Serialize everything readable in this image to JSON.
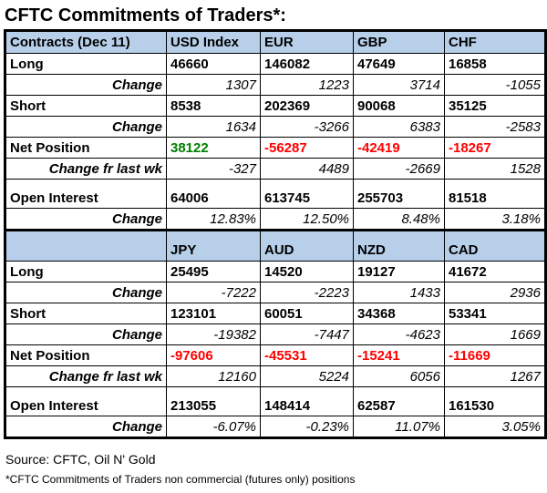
{
  "title": "CFTC Commitments of Traders*:",
  "colors": {
    "header_bg": "#b8cfe9",
    "label_bg": "#fdfbea",
    "positive": "#008000",
    "negative": "#ff0000",
    "border": "#000000"
  },
  "table": {
    "sections": [
      {
        "header": [
          "Contracts (Dec 11)",
          "USD Index",
          "EUR",
          "GBP",
          "CHF"
        ],
        "rows": [
          {
            "label": "Long",
            "style": "value",
            "tall": false,
            "values": [
              "46660",
              "146082",
              "47649",
              "16858"
            ]
          },
          {
            "label": "Change",
            "style": "change",
            "tall": false,
            "values": [
              "1307",
              "1223",
              "3714",
              "-1055"
            ]
          },
          {
            "label": "Short",
            "style": "value",
            "tall": false,
            "values": [
              "8538",
              "202369",
              "90068",
              "35125"
            ]
          },
          {
            "label": "Change",
            "style": "change",
            "tall": false,
            "values": [
              "1634",
              "-3266",
              "6383",
              "-2583"
            ]
          },
          {
            "label": "Net Position",
            "style": "net",
            "tall": false,
            "values": [
              "38122",
              "-56287",
              "-42419",
              "-18267"
            ]
          },
          {
            "label": "Change fr last wk",
            "style": "change",
            "tall": false,
            "values": [
              "-327",
              "4489",
              "-2669",
              "1528"
            ]
          },
          {
            "label": "Open Interest",
            "style": "value",
            "tall": true,
            "values": [
              "64006",
              "613745",
              "255703",
              "81518"
            ]
          },
          {
            "label": "Change",
            "style": "change",
            "tall": false,
            "values": [
              "12.83%",
              "12.50%",
              "8.48%",
              "3.18%"
            ]
          }
        ]
      },
      {
        "header": [
          "",
          "JPY",
          "AUD",
          "NZD",
          "CAD"
        ],
        "rows": [
          {
            "label": "Long",
            "style": "value",
            "tall": false,
            "values": [
              "25495",
              "14520",
              "19127",
              "41672"
            ]
          },
          {
            "label": "Change",
            "style": "change",
            "tall": false,
            "values": [
              "-7222",
              "-2223",
              "1433",
              "2936"
            ]
          },
          {
            "label": "Short",
            "style": "value",
            "tall": false,
            "values": [
              "123101",
              "60051",
              "34368",
              "53341"
            ]
          },
          {
            "label": "Change",
            "style": "change",
            "tall": false,
            "values": [
              "-19382",
              "-7447",
              "-4623",
              "1669"
            ]
          },
          {
            "label": "Net Position",
            "style": "net",
            "tall": false,
            "values": [
              "-97606",
              "-45531",
              "-15241",
              "-11669"
            ]
          },
          {
            "label": "Change fr last wk",
            "style": "change",
            "tall": false,
            "values": [
              "12160",
              "5224",
              "6056",
              "1267"
            ]
          },
          {
            "label": "Open Interest",
            "style": "value",
            "tall": true,
            "values": [
              "213055",
              "148414",
              "62587",
              "161530"
            ]
          },
          {
            "label": "Change",
            "style": "change",
            "tall": false,
            "values": [
              "-6.07%",
              "-0.23%",
              "11.07%",
              "3.05%"
            ]
          }
        ]
      }
    ]
  },
  "footer": {
    "source": "Source: CFTC, Oil N' Gold",
    "note": "*CFTC Commitments of Traders non commercial (futures only) positions"
  }
}
